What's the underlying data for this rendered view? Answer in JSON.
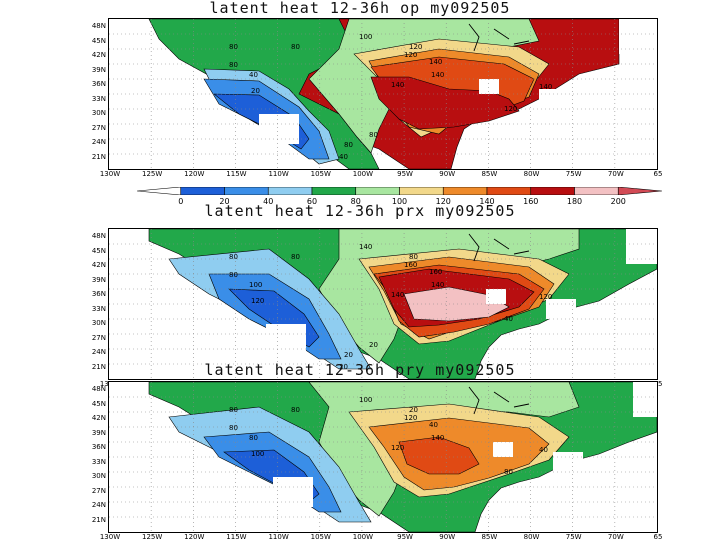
{
  "panels": [
    {
      "title": "latent heat 12-36h  op  my092505",
      "variant": "op",
      "contour_labels": [
        "80",
        "80",
        "80",
        "40",
        "20",
        "100",
        "120",
        "140",
        "140",
        "140",
        "140",
        "120",
        "120",
        "80",
        "40",
        "80"
      ]
    },
    {
      "title": "latent heat 12-36h  prx  my092505",
      "variant": "prx",
      "contour_labels": [
        "80",
        "80",
        "80",
        "100",
        "120",
        "140",
        "160",
        "160",
        "140",
        "140",
        "120",
        "80",
        "40",
        "20",
        "20",
        "20"
      ]
    },
    {
      "title": "latent heat 12-36h  pry  my092505",
      "variant": "pry",
      "contour_labels": [
        "80",
        "80",
        "80",
        "80",
        "100",
        "100",
        "120",
        "40",
        "140",
        "120",
        "40",
        "20",
        "80"
      ]
    }
  ],
  "axes": {
    "lat_labels": [
      "48N",
      "45N",
      "42N",
      "39N",
      "36N",
      "33N",
      "30N",
      "27N",
      "24N",
      "21N"
    ],
    "lon_labels": [
      "130W",
      "125W",
      "120W",
      "115W",
      "110W",
      "105W",
      "100W",
      "95W",
      "90W",
      "85W",
      "80W",
      "75W",
      "70W",
      "65"
    ]
  },
  "colorbar": {
    "levels": [
      "0",
      "20",
      "40",
      "60",
      "80",
      "100",
      "120",
      "140",
      "160",
      "180",
      "200"
    ],
    "colors": [
      "#1d5fd8",
      "#3a8ee8",
      "#8fcdf0",
      "#22a84a",
      "#a8e6a0",
      "#f2d88a",
      "#ee8a2a",
      "#e04a14",
      "#b80e10",
      "#f3c1c3",
      "#d24a55"
    ]
  }
}
